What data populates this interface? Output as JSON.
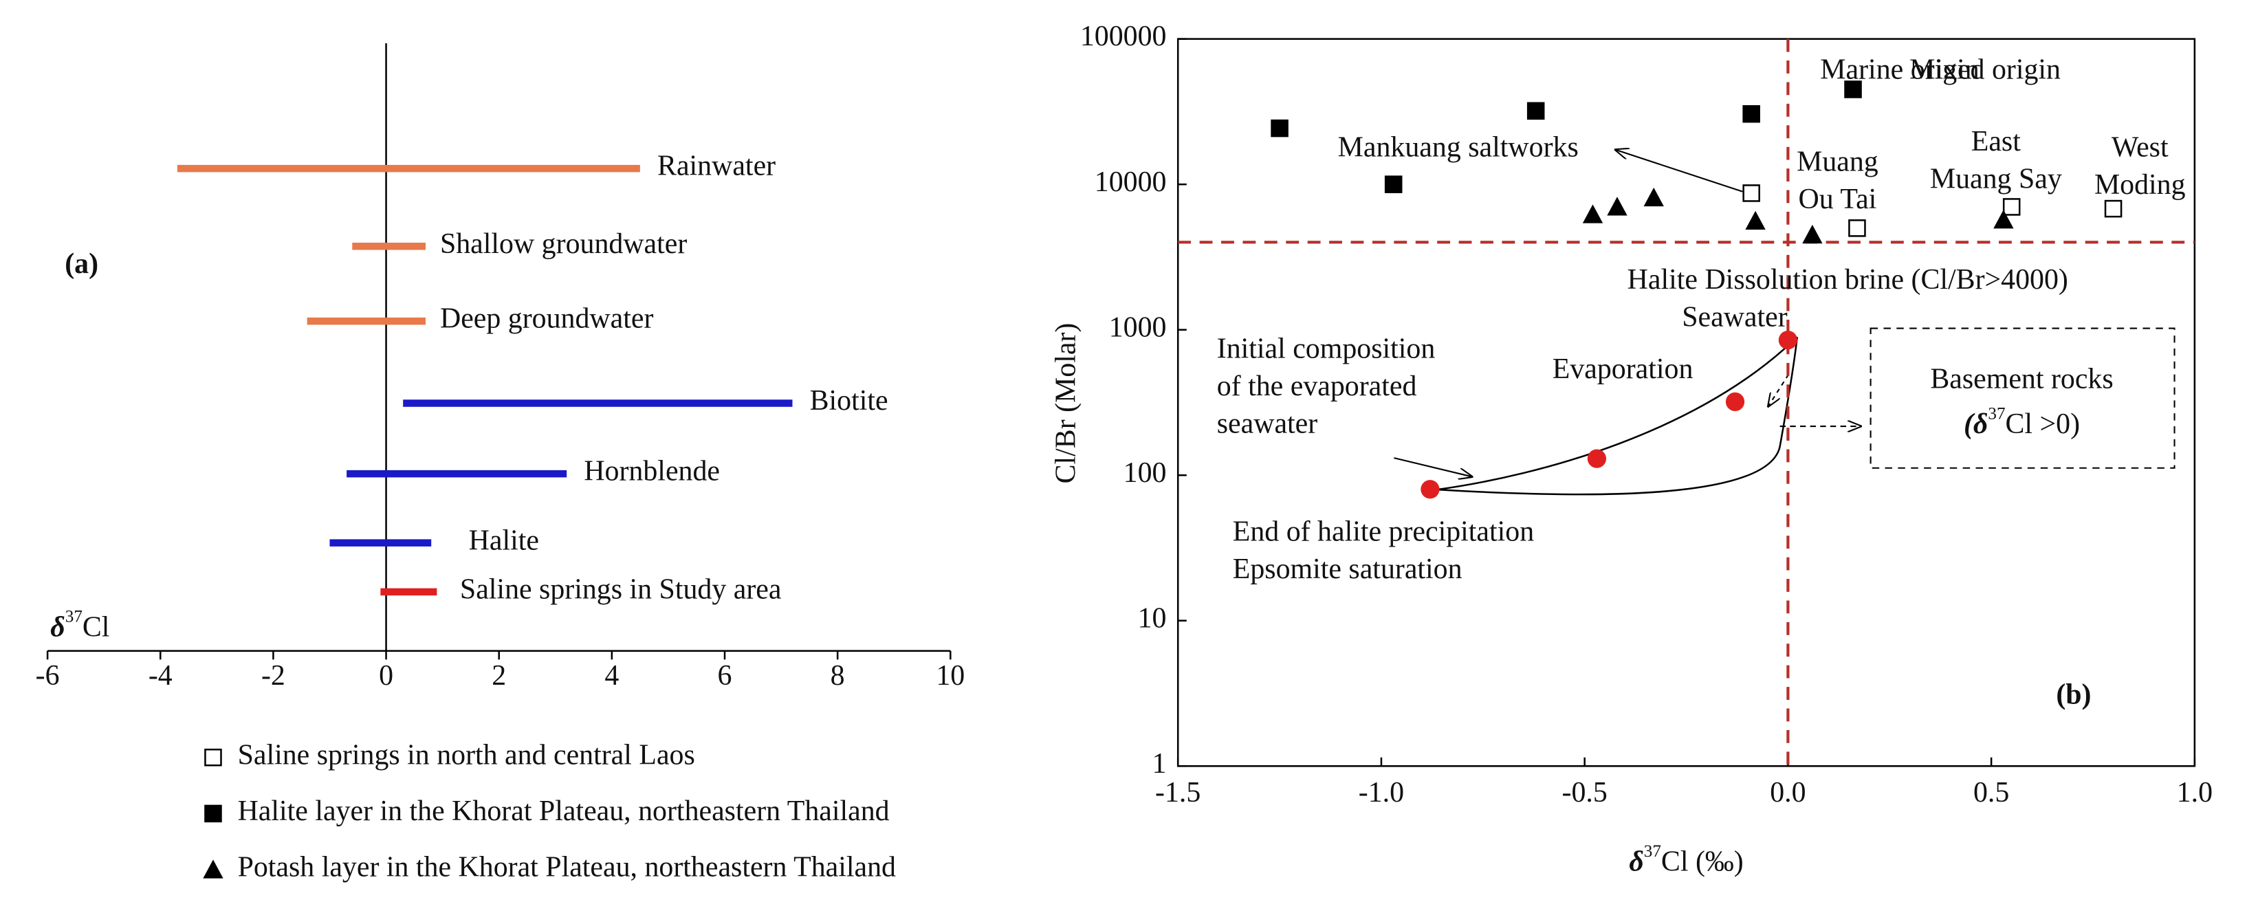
{
  "chart_data": [
    {
      "type": "range",
      "label": "(a)",
      "label_color": "#d42020",
      "xlabel": [
        "δ",
        "37",
        "Cl"
      ],
      "categories": [
        "Rainwater",
        "Shallow groundwater",
        "Deep groundwater",
        "Biotite",
        "Hornblende",
        "Halite",
        "Saline springs in Study area"
      ],
      "ranges": [
        [
          -3.7,
          4.5
        ],
        [
          -0.6,
          0.7
        ],
        [
          -1.4,
          0.7
        ],
        [
          0.3,
          7.2
        ],
        [
          -0.7,
          3.2
        ],
        [
          -1.0,
          0.8
        ],
        [
          -0.1,
          0.9
        ]
      ],
      "colors": [
        "#e8794a",
        "#e8794a",
        "#e8794a",
        "#1a1ac8",
        "#1a1ac8",
        "#1a1ac8",
        "#e02020"
      ],
      "xlim": [
        -6,
        10
      ],
      "xticks": [
        -6,
        -4,
        -2,
        0,
        2,
        4,
        6,
        8,
        10
      ]
    },
    {
      "type": "scatter",
      "label": "(b)",
      "label_color": "#d42020",
      "xlabel": [
        "δ",
        "37",
        "Cl (‰)"
      ],
      "ylabel": "Cl/Br (Molar)",
      "xlim": [
        -1.5,
        1.0
      ],
      "ylim": [
        1,
        100000
      ],
      "log_y": true,
      "xticks": [
        -1.5,
        {
          "value": -1.0,
          "label": "-1.0"
        },
        -0.5,
        {
          "value": 0.0,
          "label": "0.0"
        },
        0.5,
        {
          "value": 1.0,
          "label": "1.0"
        }
      ],
      "yticks": [
        1,
        10,
        100,
        1000,
        10000,
        100000
      ],
      "legend": "below-left",
      "series": [
        {
          "name": "Saline springs in north and central Laos",
          "marker": "open-square",
          "color": "#000000",
          "x": [
            -0.09,
            0.17,
            0.55,
            0.8
          ],
          "values": [
            8700,
            5000,
            7000,
            6800
          ]
        },
        {
          "name": "Halite layer in the Khorat Plateau, northeastern Thailand",
          "marker": "square",
          "color": "#000000",
          "x": [
            -1.25,
            -0.97,
            -0.62,
            -0.09,
            0.16
          ],
          "values": [
            24300,
            10000,
            32000,
            30500,
            45000
          ]
        },
        {
          "name": "Potash layer in the Khorat Plateau, northeastern Thailand",
          "marker": "triangle",
          "color": "#000000",
          "x": [
            -0.48,
            -0.42,
            -0.33,
            -0.08,
            0.06,
            0.53
          ],
          "values": [
            6200,
            7000,
            8100,
            5600,
            4500,
            5700
          ]
        }
      ],
      "path_points": {
        "color": "#e02020",
        "x": [
          -0.88,
          -0.47,
          -0.13,
          0.0
        ],
        "values": [
          80,
          130,
          320,
          850
        ]
      },
      "hlines": [
        4000
      ],
      "vlines": [
        0
      ],
      "ref_color": "#b5302a",
      "annotations": [
        "Marine origin",
        "Mixed origin",
        "Mankuang saltworks",
        [
          "Muang",
          "Ou Tai"
        ],
        [
          "East",
          "Muang Say"
        ],
        [
          "West",
          "Moding"
        ],
        "Halite Dissolution brine (Cl/Br>4000)",
        "Seawater",
        "Evaporation",
        [
          "Initial composition",
          "of the evaporated",
          "seawater"
        ],
        [
          "End of halite precipitation",
          "Epsomite saturation"
        ],
        "Basement rocks"
      ],
      "basement_note": [
        "(δ",
        "37",
        "Cl >0)"
      ]
    }
  ]
}
